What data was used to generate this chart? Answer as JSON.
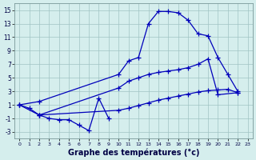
{
  "xlabel": "Graphe des températures (°c)",
  "background_color": "#d5eeed",
  "line_color": "#0000bb",
  "grid_color": "#a0c4c4",
  "xlim_min": -0.5,
  "xlim_max": 23.5,
  "ylim_min": -4,
  "ylim_max": 16,
  "yticks": [
    -3,
    -1,
    1,
    3,
    5,
    7,
    9,
    11,
    13,
    15
  ],
  "xticks": [
    0,
    1,
    2,
    3,
    4,
    5,
    6,
    7,
    8,
    9,
    10,
    11,
    12,
    13,
    14,
    15,
    16,
    17,
    18,
    19,
    20,
    21,
    22,
    23
  ],
  "curve_min_x": [
    0,
    1,
    2,
    3,
    4,
    5,
    6,
    7,
    8,
    9
  ],
  "curve_min_y": [
    1.0,
    0.5,
    -0.5,
    -1.0,
    -1.2,
    -1.2,
    -2.0,
    -2.8,
    2.0,
    -1.0
  ],
  "curve_max_x": [
    0,
    2,
    10,
    11,
    12,
    13,
    14,
    15,
    16,
    17,
    18,
    19,
    20,
    21,
    22
  ],
  "curve_max_y": [
    1.0,
    1.5,
    5.5,
    7.5,
    8.0,
    13.0,
    14.8,
    14.8,
    14.6,
    13.5,
    11.5,
    11.2,
    8.0,
    5.5,
    3.0
  ],
  "curve_diag_x": [
    2,
    10,
    11,
    12,
    13,
    14,
    15,
    16,
    17,
    18,
    19,
    20,
    22
  ],
  "curve_diag_y": [
    -0.5,
    3.5,
    4.5,
    5.0,
    5.5,
    5.8,
    6.0,
    6.2,
    6.5,
    7.0,
    7.8,
    2.5,
    2.8
  ],
  "curve_flat_x": [
    0,
    2,
    10,
    11,
    12,
    13,
    14,
    15,
    16,
    17,
    18,
    19,
    20,
    21,
    22
  ],
  "curve_flat_y": [
    1.0,
    -0.5,
    0.2,
    0.5,
    0.9,
    1.3,
    1.7,
    2.0,
    2.3,
    2.6,
    2.9,
    3.1,
    3.2,
    3.3,
    2.8
  ]
}
